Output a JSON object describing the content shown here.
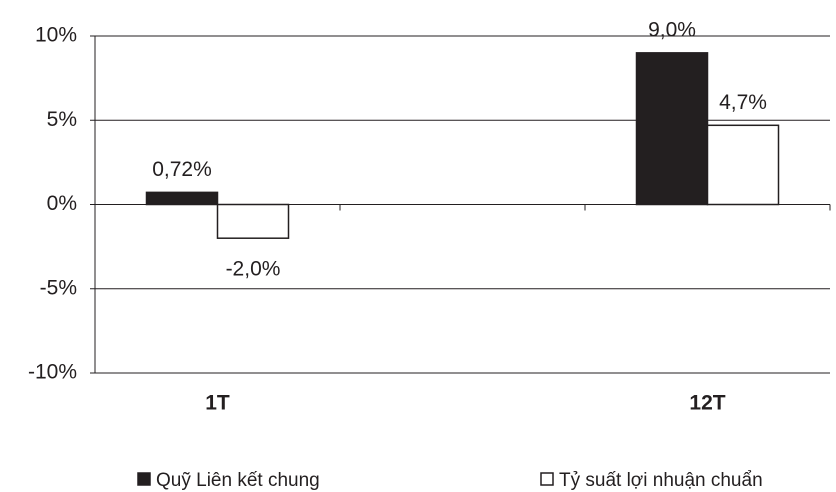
{
  "chart_data": {
    "type": "bar",
    "categories": [
      "1T",
      "12T"
    ],
    "series": [
      {
        "name": "Quỹ Liên kết chung",
        "color": "#231f20",
        "values": [
          0.72,
          9.0
        ],
        "value_labels": [
          "0,72%",
          "9,0%"
        ]
      },
      {
        "name": "Tỷ suất lợi nhuận chuẩn",
        "color": "#ffffff",
        "values": [
          -2.0,
          4.7
        ],
        "value_labels": [
          "-2,0%",
          "4,7%"
        ]
      }
    ],
    "ylim": [
      -10,
      10
    ],
    "yticks": [
      {
        "value": -10,
        "label": "-10%"
      },
      {
        "value": -5,
        "label": "-5%"
      },
      {
        "value": 0,
        "label": "0%"
      },
      {
        "value": 5,
        "label": "5%"
      },
      {
        "value": 10,
        "label": "10%"
      }
    ],
    "grid": true,
    "legend": "bottom"
  }
}
